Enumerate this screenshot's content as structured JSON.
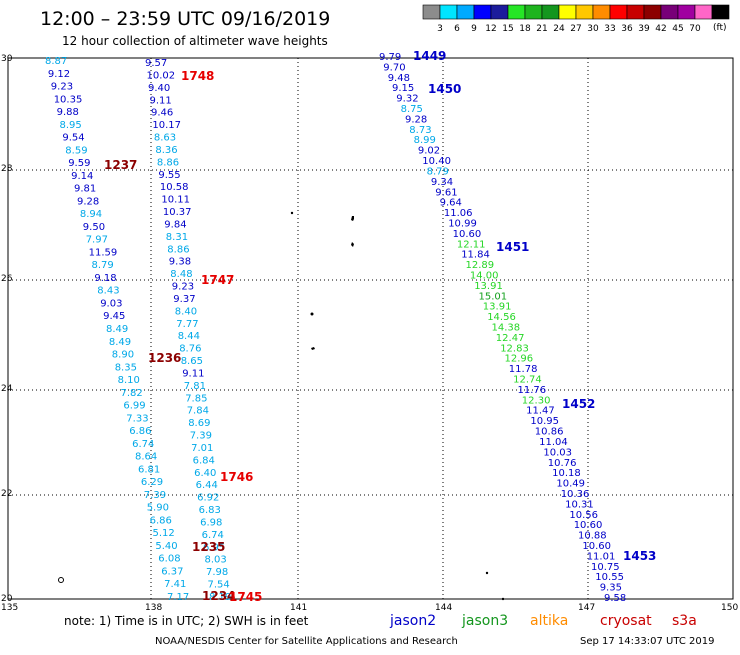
{
  "header": {
    "title": "12:00 – 23:59 UTC 09/16/2019",
    "subtitle": "12 hour collection of altimeter wave heights"
  },
  "colorbar": {
    "unit": "(ft)",
    "colors": [
      "#8c8c8c",
      "#00e5ff",
      "#00aaff",
      "#0000ff",
      "#1c1c9c",
      "#26e626",
      "#1eb41e",
      "#14961e",
      "#ffff00",
      "#ffc800",
      "#ff8c00",
      "#ff0000",
      "#c80000",
      "#8c0000",
      "#780078",
      "#a000a0",
      "#ff66c8",
      "#000000"
    ],
    "ticks": [
      "3",
      "6",
      "9",
      "12",
      "15",
      "18",
      "21",
      "24",
      "27",
      "30",
      "33",
      "36",
      "39",
      "42",
      "45",
      "70"
    ]
  },
  "map": {
    "lon_ticks": [
      "135",
      "138",
      "141",
      "144",
      "147",
      "150"
    ],
    "lat_ticks": [
      "30",
      "28",
      "26",
      "24",
      "22",
      "20"
    ],
    "lon_range": [
      135,
      150
    ],
    "lat_range": [
      20,
      30
    ]
  },
  "labels": {
    "colors": {
      "jason2": "#0000c8",
      "jason3": "#14961e",
      "altika": "#ff8c00",
      "cryosat": "#c80000",
      "s3a": "#c80000",
      "dark": "#8c0000"
    },
    "time_labels": [
      {
        "text": "1748",
        "color": "#e60000"
      },
      {
        "text": "1237",
        "color": "#8c0000"
      },
      {
        "text": "1747",
        "color": "#e60000"
      },
      {
        "text": "1236",
        "color": "#8c0000"
      },
      {
        "text": "1746",
        "color": "#e60000"
      },
      {
        "text": "1235",
        "color": "#8c0000"
      },
      {
        "text": "1234",
        "color": "#8c0000"
      },
      {
        "text": "1745",
        "color": "#e60000"
      },
      {
        "text": "1449",
        "color": "#0000c8"
      },
      {
        "text": "1450",
        "color": "#0000c8"
      },
      {
        "text": "1451",
        "color": "#0000c8"
      },
      {
        "text": "1452",
        "color": "#0000c8"
      },
      {
        "text": "1453",
        "color": "#0000c8"
      }
    ]
  },
  "tracks": {
    "track_a": [
      "8.87",
      "9.12",
      "9.23",
      "10.35",
      "9.88",
      "8.95",
      "9.54",
      "8.59",
      "9.59",
      "9.14",
      "9.81",
      "9.28",
      "8.94",
      "9.50",
      "7.97",
      "11.59",
      "8.79",
      "9.18",
      "8.43",
      "9.03",
      "9.45",
      "8.49",
      "8.49",
      "8.90",
      "8.35",
      "8.10",
      "7.82",
      "6.99",
      "7.33",
      "6.86",
      "6.74",
      "8.64",
      "6.81",
      "6.29",
      "7.39",
      "5.90",
      "6.86",
      "5.12",
      "5.40",
      "6.08",
      "6.37",
      "7.41",
      "7.17"
    ],
    "track_b": [
      "9.57",
      "10.02",
      "9.40",
      "9.11",
      "9.46",
      "10.17",
      "8.63",
      "8.36",
      "8.86",
      "9.55",
      "10.58",
      "10.11",
      "10.37",
      "9.84",
      "8.31",
      "8.86",
      "9.38",
      "8.48",
      "9.23",
      "9.37",
      "8.40",
      "7.77",
      "8.44",
      "8.76",
      "8.65",
      "9.11",
      "7.81",
      "7.85",
      "7.84",
      "8.69",
      "7.39",
      "7.01",
      "6.84",
      "6.40",
      "6.44",
      "6.92",
      "6.83",
      "6.98",
      "6.74",
      "6.95",
      "8.03",
      "7.98",
      "7.54",
      "8.19"
    ],
    "track_c": [
      "9.79",
      "9.70",
      "9.48",
      "9.15",
      "9.32",
      "8.75",
      "9.28",
      "8.73",
      "8.99",
      "9.02",
      "10.40",
      "8.79",
      "9.34",
      "9.61",
      "9.64",
      "11.06",
      "10.99",
      "10.60",
      "12.11",
      "11.84",
      "12.89",
      "14.00",
      "13.91",
      "15.01",
      "13.91",
      "14.56",
      "14.38",
      "12.47",
      "12.83",
      "12.96",
      "11.78",
      "12.74",
      "11.76",
      "12.30",
      "11.47",
      "10.95",
      "10.86",
      "11.04",
      "10.03",
      "10.76",
      "10.18",
      "10.49",
      "10.36",
      "10.31",
      "10.56",
      "10.60",
      "10.88",
      "10.60",
      "11.01",
      "10.75",
      "10.55",
      "9.35",
      "9.58"
    ]
  },
  "footer": {
    "note": "note: 1) Time is in UTC; 2) SWH is in feet",
    "legend": [
      "jason2",
      "jason3",
      "altika",
      "cryosat",
      "s3a"
    ],
    "credit": "NOAA/NESDIS Center for Satellite Applications and Research",
    "timestamp": "Sep 17 14:33:07 UTC 2019"
  }
}
